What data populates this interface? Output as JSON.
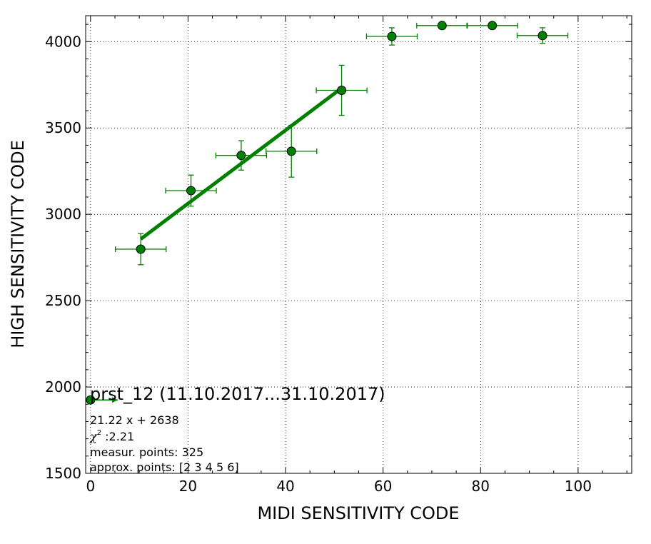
{
  "chart_data": {
    "type": "scatter",
    "xlabel": "MIDI SENSITIVITY CODE",
    "ylabel": "HIGH SENSITIVITY CODE",
    "xlim": [
      -1,
      111
    ],
    "ylim": [
      1500,
      4150
    ],
    "x_ticks": [
      0,
      20,
      40,
      60,
      80,
      100
    ],
    "y_ticks": [
      1500,
      2000,
      2500,
      3000,
      3500,
      4000
    ],
    "grid": true,
    "colors": {
      "series": "#008000",
      "marker_edge": "#000000"
    },
    "points": [
      {
        "x": 0,
        "y": 1925,
        "xerr": 0,
        "yerr": 0
      },
      {
        "x": 10.3,
        "y": 2798,
        "xerr": 5.2,
        "yerr": 90
      },
      {
        "x": 20.6,
        "y": 3137,
        "xerr": 5.2,
        "yerr": 90
      },
      {
        "x": 30.9,
        "y": 3341,
        "xerr": 5.2,
        "yerr": 85
      },
      {
        "x": 41.2,
        "y": 3365,
        "xerr": 5.2,
        "yerr": 150
      },
      {
        "x": 51.5,
        "y": 3718,
        "xerr": 5.2,
        "yerr": 145
      },
      {
        "x": 61.8,
        "y": 4030,
        "xerr": 5.2,
        "yerr": 50
      },
      {
        "x": 72.1,
        "y": 4093,
        "xerr": 5.2,
        "yerr": 0
      },
      {
        "x": 82.4,
        "y": 4093,
        "xerr": 5.2,
        "yerr": 0
      },
      {
        "x": 92.7,
        "y": 4035,
        "xerr": 5.2,
        "yerr": 45
      }
    ],
    "fit": {
      "slope": 21.22,
      "intercept": 2638,
      "x_range": [
        10.3,
        51.5
      ]
    },
    "legend_marker": {
      "x1": 0,
      "x2": 5.6,
      "y": 1925
    },
    "annotation": {
      "title": "prst_12 (11.10.2017...31.10.2017)",
      "equation": "21.22 x + 2638",
      "chi2_symbol": "χ",
      "chi2_sup": "2",
      "chi2_value": " :2.21",
      "measur_points": "measur. points: 325",
      "approx_points": "approx. points: [2 3 4 5 6]"
    }
  }
}
